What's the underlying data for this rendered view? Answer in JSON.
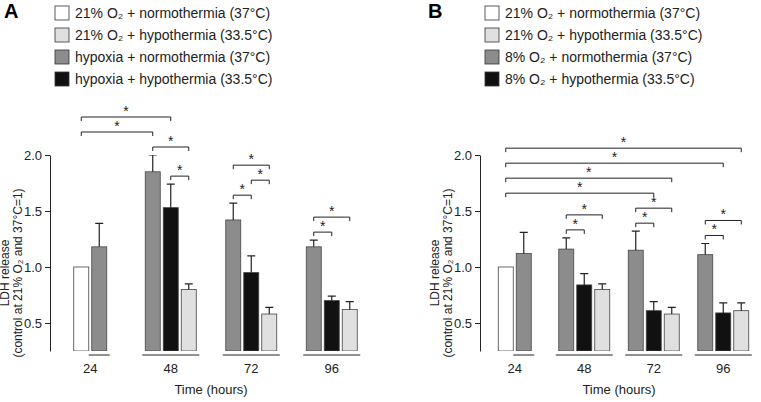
{
  "chart_data": [
    {
      "type": "bar",
      "title": "A",
      "x_label": "Time (hours)",
      "y_label": "LDH release\n(control at 21% O₂ and 37°C=1)",
      "categories": [
        "24",
        "48",
        "72",
        "96"
      ],
      "series": [
        {
          "name": "21% O₂ + normothermia (37°C)",
          "color": "#ffffff",
          "values": [
            1,
            null,
            null,
            null
          ],
          "errors": [
            null,
            null,
            null,
            null
          ]
        },
        {
          "name": "21% O₂ + hypothermia (33.5°C)",
          "color": "#e0e0e0",
          "values": [
            null,
            0.8,
            0.58,
            0.62
          ],
          "errors": [
            null,
            0.05,
            0.06,
            0.07
          ]
        },
        {
          "name": "hypoxia + normothermia (37°C)",
          "color": "#8c8c8c",
          "values": [
            1.18,
            1.85,
            1.42,
            1.18
          ],
          "errors": [
            0.21,
            0.15,
            0.15,
            0.06
          ]
        },
        {
          "name": "hypoxia + hypothermia (33.5°C)",
          "color": "#111111",
          "values": [
            null,
            1.53,
            0.95,
            0.7
          ],
          "errors": [
            null,
            0.21,
            0.15,
            0.04
          ]
        }
      ],
      "ylim": [
        0.25,
        2.0
      ],
      "yticks": [
        0.5,
        {
          "value": 1,
          "label": "1.0"
        },
        1.5,
        {
          "value": 2,
          "label": "2.0"
        }
      ],
      "legend": "top",
      "comparisons": [
        {
          "a": [
            0,
            0
          ],
          "b": [
            2,
            1
          ],
          "label": "*"
        },
        {
          "a": [
            0,
            0
          ],
          "b": [
            3,
            1
          ],
          "label": "*"
        },
        {
          "a": [
            2,
            1
          ],
          "b": [
            1,
            1
          ],
          "label": "*"
        },
        {
          "a": [
            3,
            1
          ],
          "b": [
            1,
            1
          ],
          "label": "*"
        },
        {
          "a": [
            2,
            2
          ],
          "b": [
            3,
            2
          ],
          "label": "*"
        },
        {
          "a": [
            2,
            2
          ],
          "b": [
            1,
            2
          ],
          "label": "*"
        },
        {
          "a": [
            3,
            2
          ],
          "b": [
            1,
            2
          ],
          "label": "*"
        },
        {
          "a": [
            2,
            3
          ],
          "b": [
            3,
            3
          ],
          "label": "*"
        },
        {
          "a": [
            2,
            3
          ],
          "b": [
            1,
            3
          ],
          "label": "*"
        }
      ]
    },
    {
      "type": "bar",
      "title": "B",
      "x_label": "Time (hours)",
      "y_label": "LDH release\n(control at 21% O₂ and 37°C=1)",
      "categories": [
        "24",
        "48",
        "72",
        "96"
      ],
      "series": [
        {
          "name": "21% O₂ + normothermia (37°C)",
          "color": "#ffffff",
          "values": [
            1,
            null,
            null,
            null
          ],
          "errors": [
            null,
            null,
            null,
            null
          ]
        },
        {
          "name": "21% O₂ + hypothermia (33.5°C)",
          "color": "#e0e0e0",
          "values": [
            null,
            0.8,
            0.58,
            0.61
          ],
          "errors": [
            null,
            0.05,
            0.06,
            0.07
          ]
        },
        {
          "name": "8% O₂ + normothermia (37°C)",
          "color": "#8c8c8c",
          "values": [
            1.12,
            1.16,
            1.15,
            1.11
          ],
          "errors": [
            0.19,
            0.1,
            0.17,
            0.1
          ]
        },
        {
          "name": "8% O₂ + hypothermia (33.5°C)",
          "color": "#111111",
          "values": [
            null,
            0.84,
            0.61,
            0.59
          ],
          "errors": [
            null,
            0.1,
            0.08,
            0.09
          ]
        }
      ],
      "ylim": [
        0.25,
        2.0
      ],
      "yticks": [
        0.5,
        {
          "value": 1,
          "label": "1.0"
        },
        1.5,
        {
          "value": 2,
          "label": "2.0"
        }
      ],
      "legend": "top",
      "comparisons": [
        {
          "a": [
            0,
            0
          ],
          "b": [
            3,
            2
          ],
          "label": "*"
        },
        {
          "a": [
            0,
            0
          ],
          "b": [
            1,
            2
          ],
          "label": "*"
        },
        {
          "a": [
            0,
            0
          ],
          "b": [
            3,
            3
          ],
          "label": "*"
        },
        {
          "a": [
            0,
            0
          ],
          "b": [
            1,
            3
          ],
          "label": "*"
        },
        {
          "a": [
            2,
            1
          ],
          "b": [
            3,
            1
          ],
          "label": "*"
        },
        {
          "a": [
            2,
            1
          ],
          "b": [
            1,
            1
          ],
          "label": "*"
        },
        {
          "a": [
            2,
            2
          ],
          "b": [
            3,
            2
          ],
          "label": "*"
        },
        {
          "a": [
            2,
            2
          ],
          "b": [
            1,
            2
          ],
          "label": "*"
        },
        {
          "a": [
            2,
            3
          ],
          "b": [
            3,
            3
          ],
          "label": "*"
        },
        {
          "a": [
            2,
            3
          ],
          "b": [
            1,
            3
          ],
          "label": "*"
        }
      ]
    }
  ]
}
